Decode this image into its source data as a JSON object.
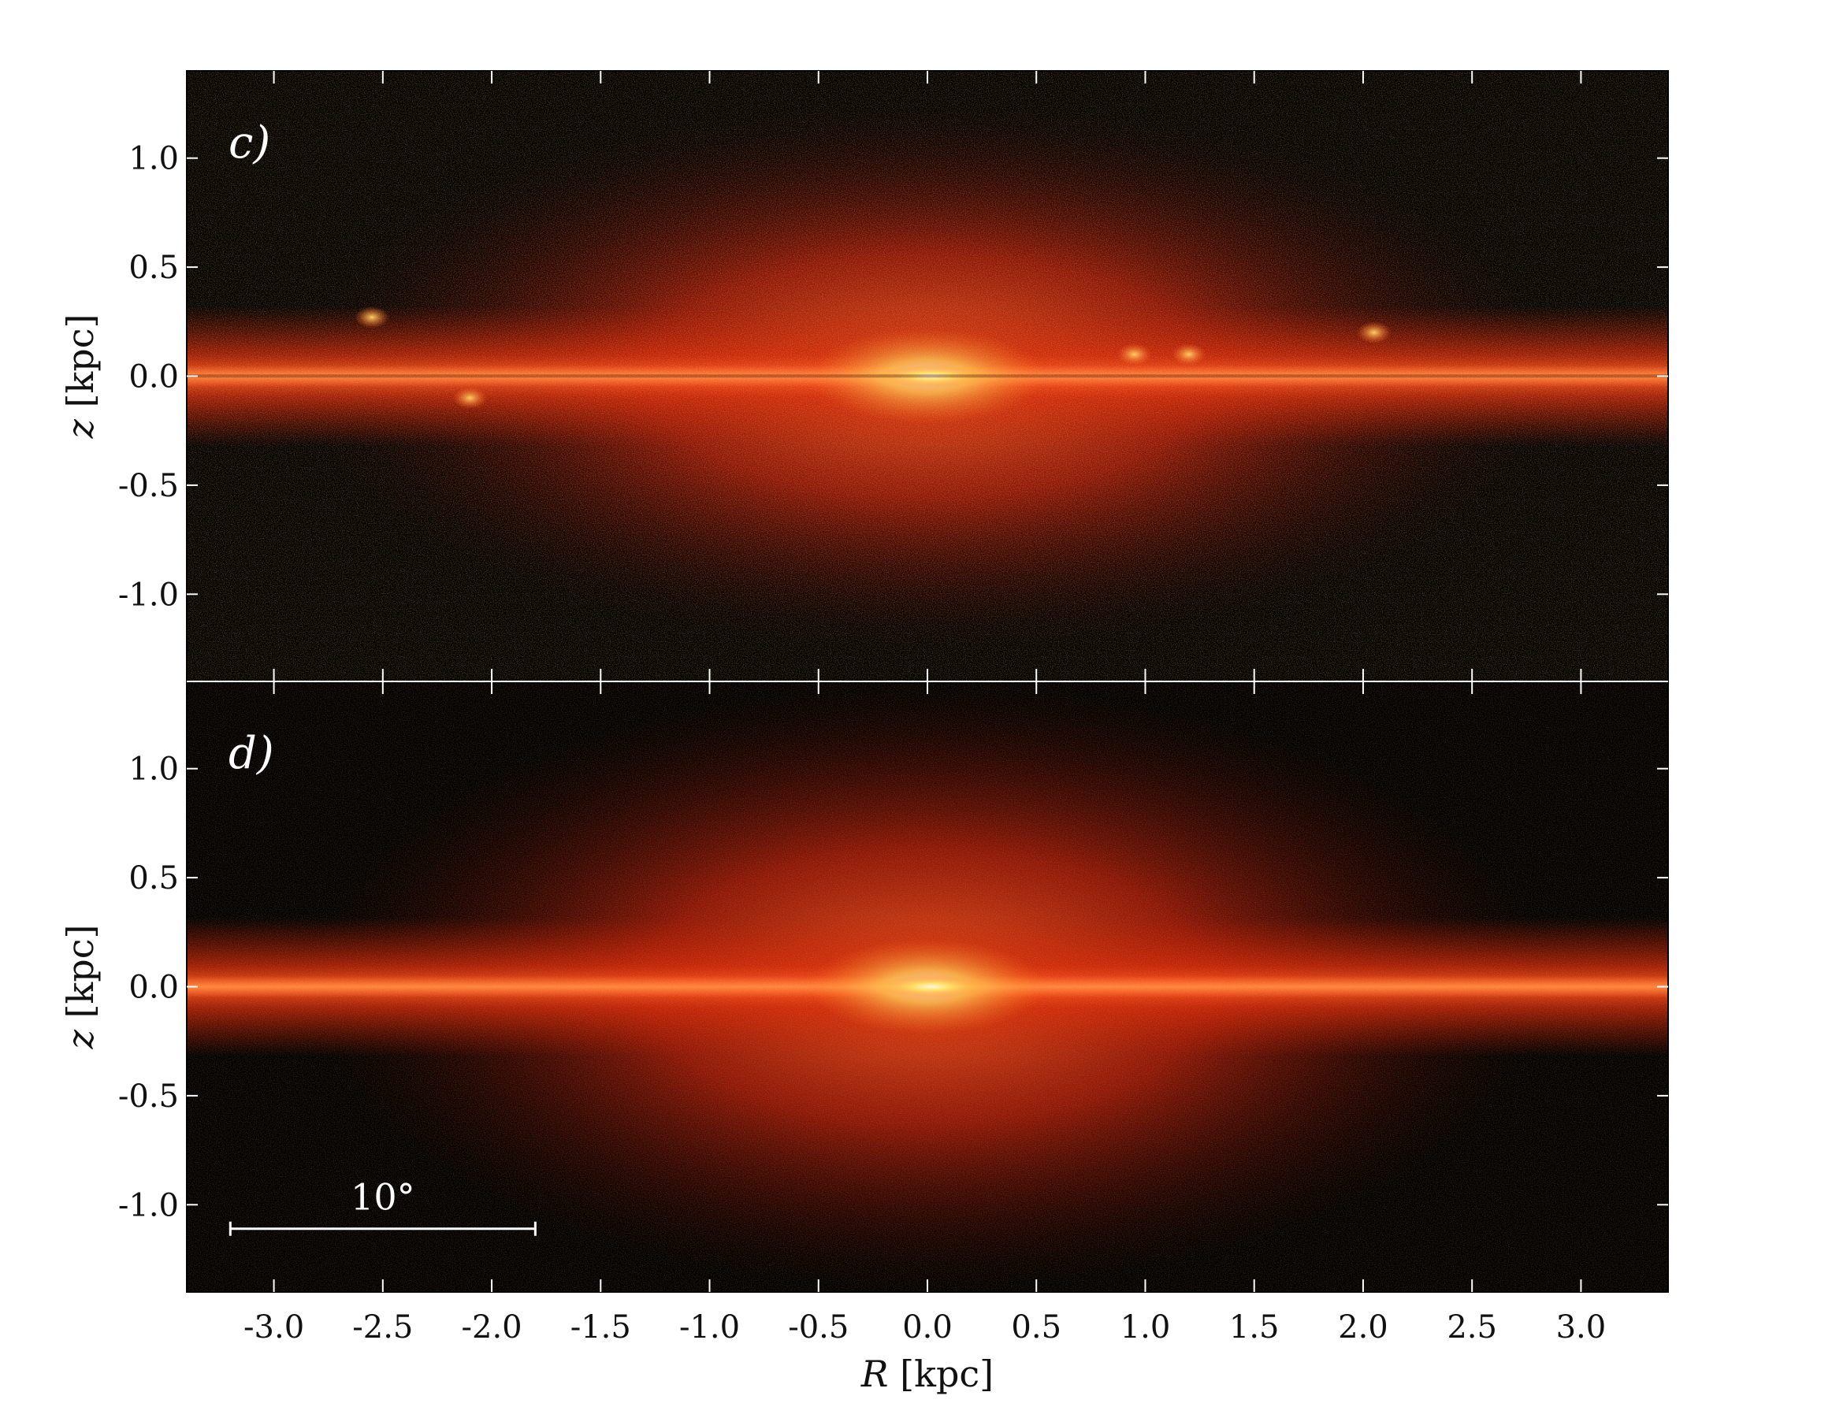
{
  "chart_data": [
    {
      "type": "heatmap",
      "panel_label": "c)",
      "description_key": "edge-on surface brightness map, top panel",
      "xlim": [
        -3.4,
        3.4
      ],
      "ylim": [
        -1.4,
        1.4
      ],
      "yticks": [
        -1.0,
        -0.5,
        0.0,
        0.5,
        1.0
      ],
      "ytick_labels": [
        "-1.0",
        "-0.5",
        "0.0",
        "0.5",
        "1.0"
      ],
      "ylabel_var": "z",
      "ylabel_unit": "[kpc]",
      "colormap": "hot",
      "features": {
        "bright_core_at": [
          0.0,
          0.0
        ],
        "dust_lane": true,
        "star_forming_clumps": [
          [
            -2.55,
            0.27
          ],
          [
            -2.1,
            -0.1
          ],
          [
            0.95,
            0.1
          ],
          [
            1.2,
            0.1
          ],
          [
            2.05,
            0.2
          ]
        ]
      }
    },
    {
      "type": "heatmap",
      "panel_label": "d)",
      "xlim": [
        -3.4,
        3.4
      ],
      "ylim": [
        -1.4,
        1.4
      ],
      "yticks": [
        -1.0,
        -0.5,
        0.0,
        0.5,
        1.0
      ],
      "ytick_labels": [
        "-1.0",
        "-0.5",
        "0.0",
        "0.5",
        "1.0"
      ],
      "ylabel_var": "z",
      "ylabel_unit": "[kpc]",
      "colormap": "hot",
      "scale_bar": {
        "label": "10°",
        "x_start": -3.2,
        "x_end": -1.8,
        "y": -1.11
      }
    }
  ],
  "shared_x": {
    "xticks": [
      -3.0,
      -2.5,
      -2.0,
      -1.5,
      -1.0,
      -0.5,
      0.0,
      0.5,
      1.0,
      1.5,
      2.0,
      2.5,
      3.0
    ],
    "xtick_labels": [
      "-3.0",
      "-2.5",
      "-2.0",
      "-1.5",
      "-1.0",
      "-0.5",
      "0.0",
      "0.5",
      "1.0",
      "1.5",
      "2.0",
      "2.5",
      "3.0"
    ],
    "xlabel_var": "R",
    "xlabel_unit": "[kpc]"
  },
  "colors": {
    "background": "#000000",
    "disk": "#e03010",
    "core": "#ffe060",
    "frame": "#000000",
    "tick_inside": "#ffffff"
  }
}
